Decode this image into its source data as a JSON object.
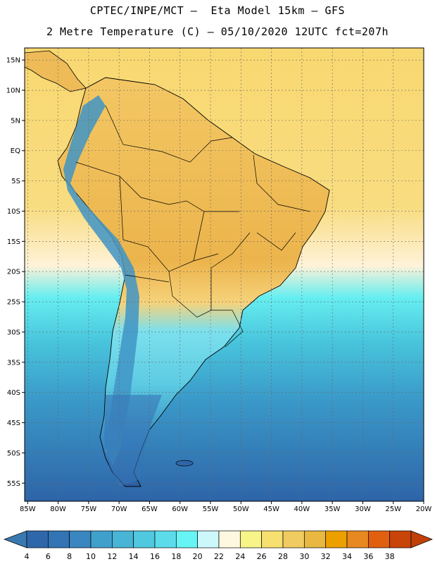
{
  "title": {
    "line1": "CPTEC/INPE/MCT –  Eta Model 15km – GFS",
    "line2": "2 Metre Temperature (C) – 05/10/2020 12UTC fct=207h"
  },
  "map": {
    "lon_range": [
      -85,
      -20
    ],
    "lat_range": [
      -58,
      17
    ],
    "lat_ticks": [
      "15N",
      "10N",
      "5N",
      "EQ",
      "5S",
      "10S",
      "15S",
      "20S",
      "25S",
      "30S",
      "35S",
      "40S",
      "45S",
      "50S",
      "55S"
    ],
    "lon_ticks": [
      "85W",
      "80W",
      "75W",
      "70W",
      "65W",
      "60W",
      "55W",
      "50W",
      "45W",
      "40W",
      "35W",
      "30W",
      "25W",
      "20W"
    ],
    "grid": true,
    "land_color": "#f0c060",
    "ocean_warm_color": "#f8d870",
    "ocean_cold_color": "#3a78b8"
  },
  "colorbar": {
    "labels": [
      "4",
      "6",
      "8",
      "10",
      "12",
      "14",
      "16",
      "18",
      "20",
      "22",
      "24",
      "26",
      "28",
      "30",
      "32",
      "34",
      "36",
      "38"
    ],
    "colors": [
      "#2f68aa",
      "#3274b4",
      "#3a86c0",
      "#40a0cc",
      "#48b4d6",
      "#50c8e0",
      "#5cdcea",
      "#66f4f4",
      "#ccf8fc",
      "#fff8e0",
      "#f8f488",
      "#f8e070",
      "#f0cc60",
      "#e8b840",
      "#eca000",
      "#e88820",
      "#e06010",
      "#c84408"
    ],
    "low_color": "#3a78b0",
    "high_color": "#c04008"
  }
}
